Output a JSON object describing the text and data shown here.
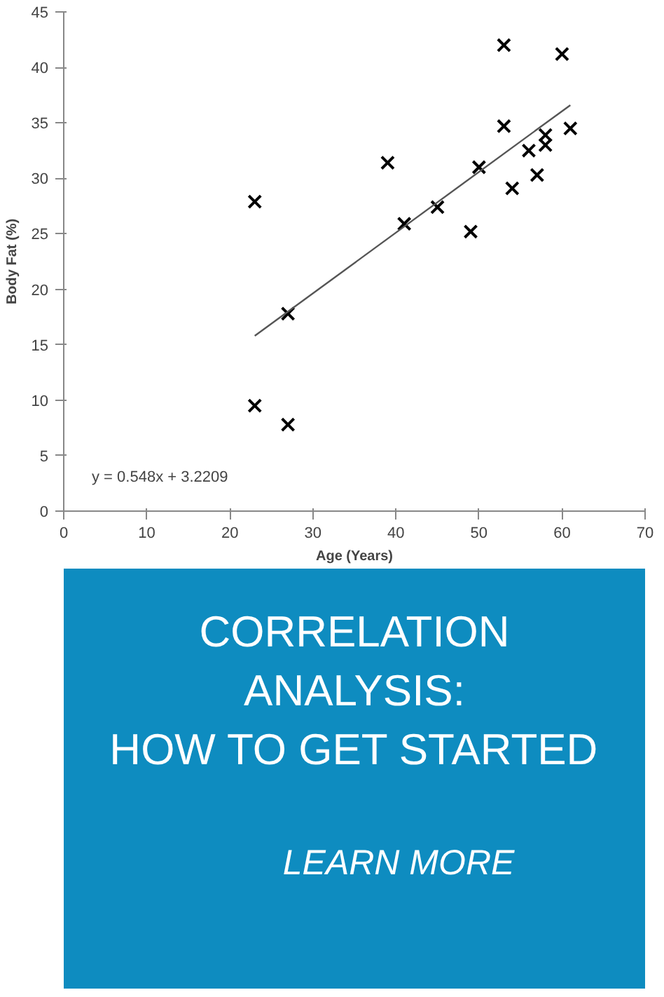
{
  "chart_data": {
    "type": "scatter",
    "title": "CORRELATION ANALYSIS: HOW TO GET STARTED",
    "xlabel": "Age (Years)",
    "ylabel": "Body Fat (%)",
    "x": [
      23,
      23,
      27,
      27,
      39,
      41,
      45,
      49,
      50,
      53,
      53,
      54,
      56,
      57,
      58,
      58,
      60,
      61
    ],
    "series": [
      {
        "color": "#000000",
        "values": [
          27.9,
          9.5,
          17.8,
          7.8,
          31.4,
          25.9,
          27.4,
          25.2,
          31.0,
          42.0,
          34.7,
          29.1,
          32.5,
          30.3,
          33.9,
          33.0,
          41.2,
          34.5
        ]
      },
      {
        "type": "line",
        "color": "#555555",
        "x": [
          23,
          61
        ],
        "values": [
          15.8,
          36.6
        ],
        "marker": "none"
      }
    ],
    "annotations": [
      "y = 0.548x + 3.2209",
      "LEARN MORE"
    ],
    "xlim": [
      0,
      70
    ],
    "ylim": [
      0,
      45
    ],
    "xticks": [
      0,
      10,
      20,
      30,
      40,
      50,
      60,
      70
    ],
    "yticks": [
      0,
      5,
      10,
      15,
      20,
      25,
      30,
      35,
      40,
      45
    ],
    "grid": false,
    "marker": "cross"
  }
}
